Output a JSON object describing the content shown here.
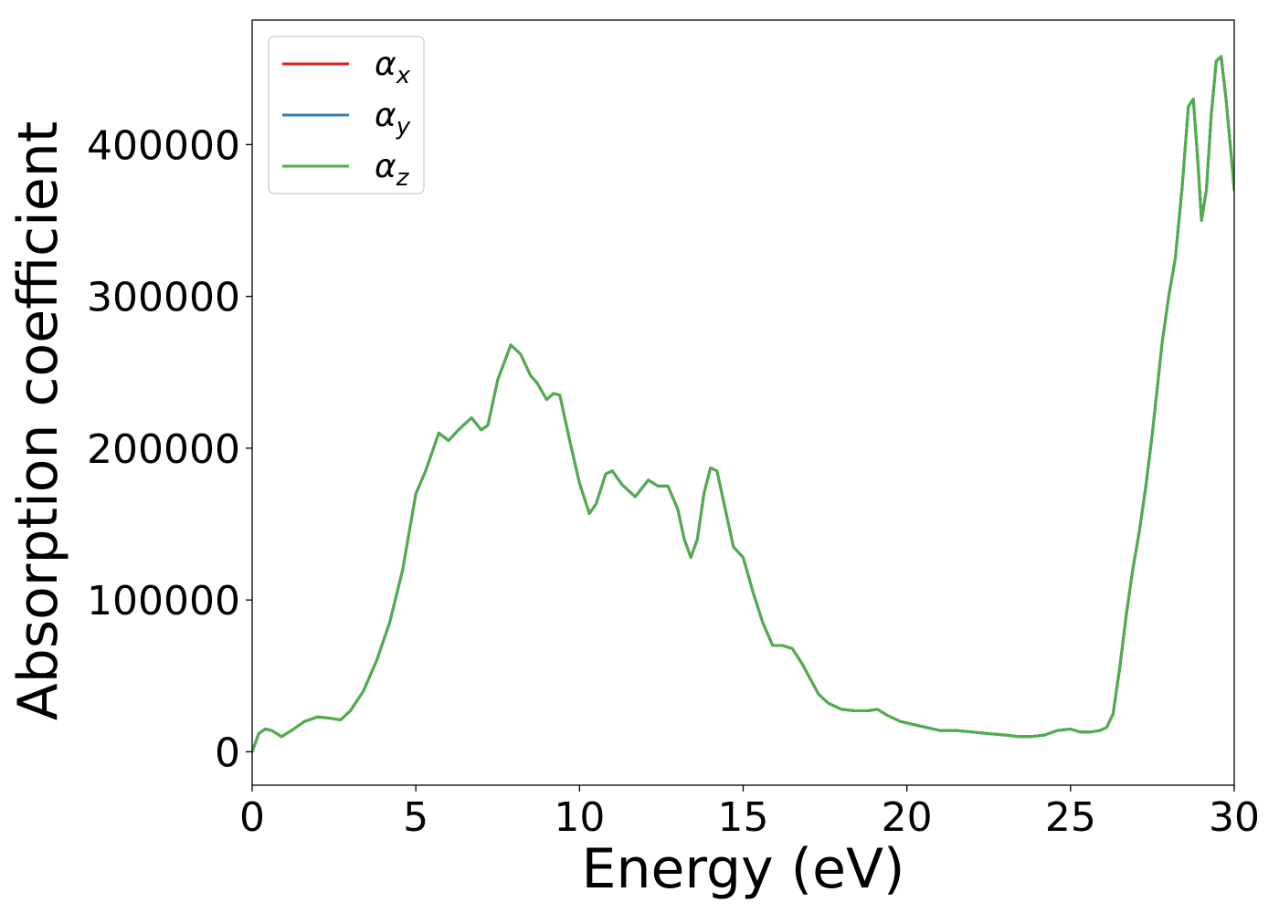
{
  "chart_data": {
    "type": "line",
    "xlabel": "Energy (eV)",
    "ylabel": "Absorption coefficient",
    "xlim": [
      0,
      30
    ],
    "ylim": [
      -22000,
      482000
    ],
    "xticks": [
      0,
      5,
      10,
      15,
      20,
      25,
      30
    ],
    "yticks": [
      0,
      100000,
      200000,
      300000,
      400000
    ],
    "grid": false,
    "legend_position": "top-left",
    "series": [
      {
        "name": "x",
        "color": "#e41a1c",
        "x": [
          0,
          0.2,
          0.4,
          0.6,
          0.9,
          1.2,
          1.6,
          2.0,
          2.4,
          2.7,
          3.0,
          3.4,
          3.8,
          4.2,
          4.6,
          5.0,
          5.3,
          5.7,
          6.0,
          6.3,
          6.7,
          7.0,
          7.2,
          7.5,
          7.9,
          8.2,
          8.5,
          8.7,
          9.0,
          9.2,
          9.4,
          9.7,
          10.0,
          10.3,
          10.5,
          10.8,
          11.0,
          11.3,
          11.7,
          12.1,
          12.4,
          12.7,
          13.0,
          13.2,
          13.4,
          13.6,
          13.8,
          14.0,
          14.2,
          14.4,
          14.7,
          15.0,
          15.3,
          15.6,
          15.9,
          16.2,
          16.5,
          16.8,
          17.0,
          17.3,
          17.6,
          18.0,
          18.4,
          18.8,
          19.1,
          19.4,
          19.8,
          20.2,
          20.6,
          21.0,
          21.5,
          22.0,
          22.5,
          23.0,
          23.4,
          23.8,
          24.2,
          24.6,
          25.0,
          25.3,
          25.6,
          25.9,
          26.1,
          26.3,
          26.5,
          26.7,
          26.9,
          27.1,
          27.3,
          27.5,
          27.8,
          28.0,
          28.2,
          28.4,
          28.6,
          28.75,
          28.9,
          29.0,
          29.15,
          29.3,
          29.45,
          29.6,
          29.75,
          29.9,
          30.0
        ],
        "y": [
          0,
          12000,
          15000,
          14000,
          10000,
          14000,
          20000,
          23000,
          22000,
          21000,
          27000,
          40000,
          60000,
          85000,
          120000,
          170000,
          185000,
          210000,
          205000,
          212000,
          220000,
          212000,
          215000,
          245000,
          268000,
          262000,
          248000,
          243000,
          232000,
          236000,
          235000,
          205000,
          177000,
          157000,
          163000,
          183000,
          185000,
          176000,
          168000,
          179000,
          175000,
          175000,
          160000,
          140000,
          128000,
          140000,
          170000,
          187000,
          185000,
          165000,
          135000,
          128000,
          105000,
          85000,
          70000,
          70000,
          68000,
          58000,
          50000,
          38000,
          32000,
          28000,
          27000,
          27000,
          28000,
          24000,
          20000,
          18000,
          16000,
          14000,
          14000,
          13000,
          12000,
          11000,
          10000,
          10000,
          11000,
          14000,
          15000,
          13000,
          13000,
          14000,
          16000,
          25000,
          55000,
          90000,
          120000,
          145000,
          175000,
          210000,
          270000,
          300000,
          325000,
          370000,
          425000,
          430000,
          385000,
          350000,
          370000,
          420000,
          455000,
          458000,
          430000,
          395000,
          370000
        ]
      },
      {
        "name": "y",
        "color": "#377eb8",
        "x": [
          0,
          0.2,
          0.4,
          0.6,
          0.9,
          1.2,
          1.6,
          2.0,
          2.4,
          2.7,
          3.0,
          3.4,
          3.8,
          4.2,
          4.6,
          5.0,
          5.3,
          5.7,
          6.0,
          6.3,
          6.7,
          7.0,
          7.2,
          7.5,
          7.9,
          8.2,
          8.5,
          8.7,
          9.0,
          9.2,
          9.4,
          9.7,
          10.0,
          10.3,
          10.5,
          10.8,
          11.0,
          11.3,
          11.7,
          12.1,
          12.4,
          12.7,
          13.0,
          13.2,
          13.4,
          13.6,
          13.8,
          14.0,
          14.2,
          14.4,
          14.7,
          15.0,
          15.3,
          15.6,
          15.9,
          16.2,
          16.5,
          16.8,
          17.0,
          17.3,
          17.6,
          18.0,
          18.4,
          18.8,
          19.1,
          19.4,
          19.8,
          20.2,
          20.6,
          21.0,
          21.5,
          22.0,
          22.5,
          23.0,
          23.4,
          23.8,
          24.2,
          24.6,
          25.0,
          25.3,
          25.6,
          25.9,
          26.1,
          26.3,
          26.5,
          26.7,
          26.9,
          27.1,
          27.3,
          27.5,
          27.8,
          28.0,
          28.2,
          28.4,
          28.6,
          28.75,
          28.9,
          29.0,
          29.15,
          29.3,
          29.45,
          29.6,
          29.75,
          29.9,
          30.0
        ],
        "y": [
          0,
          12000,
          15000,
          14000,
          10000,
          14000,
          20000,
          23000,
          22000,
          21000,
          27000,
          40000,
          60000,
          85000,
          120000,
          170000,
          185000,
          210000,
          205000,
          212000,
          220000,
          212000,
          215000,
          245000,
          268000,
          262000,
          248000,
          243000,
          232000,
          236000,
          235000,
          205000,
          177000,
          157000,
          163000,
          183000,
          185000,
          176000,
          168000,
          179000,
          175000,
          175000,
          160000,
          140000,
          128000,
          140000,
          170000,
          187000,
          185000,
          165000,
          135000,
          128000,
          105000,
          85000,
          70000,
          70000,
          68000,
          58000,
          50000,
          38000,
          32000,
          28000,
          27000,
          27000,
          28000,
          24000,
          20000,
          18000,
          16000,
          14000,
          14000,
          13000,
          12000,
          11000,
          10000,
          10000,
          11000,
          14000,
          15000,
          13000,
          13000,
          14000,
          16000,
          25000,
          55000,
          90000,
          120000,
          145000,
          175000,
          210000,
          270000,
          300000,
          325000,
          370000,
          425000,
          430000,
          385000,
          350000,
          370000,
          420000,
          455000,
          458000,
          430000,
          395000,
          370000
        ]
      },
      {
        "name": "z",
        "color": "#4daf4a",
        "x": [
          0,
          0.2,
          0.4,
          0.6,
          0.9,
          1.2,
          1.6,
          2.0,
          2.4,
          2.7,
          3.0,
          3.4,
          3.8,
          4.2,
          4.6,
          5.0,
          5.3,
          5.7,
          6.0,
          6.3,
          6.7,
          7.0,
          7.2,
          7.5,
          7.9,
          8.2,
          8.5,
          8.7,
          9.0,
          9.2,
          9.4,
          9.7,
          10.0,
          10.3,
          10.5,
          10.8,
          11.0,
          11.3,
          11.7,
          12.1,
          12.4,
          12.7,
          13.0,
          13.2,
          13.4,
          13.6,
          13.8,
          14.0,
          14.2,
          14.4,
          14.7,
          15.0,
          15.3,
          15.6,
          15.9,
          16.2,
          16.5,
          16.8,
          17.0,
          17.3,
          17.6,
          18.0,
          18.4,
          18.8,
          19.1,
          19.4,
          19.8,
          20.2,
          20.6,
          21.0,
          21.5,
          22.0,
          22.5,
          23.0,
          23.4,
          23.8,
          24.2,
          24.6,
          25.0,
          25.3,
          25.6,
          25.9,
          26.1,
          26.3,
          26.5,
          26.7,
          26.9,
          27.1,
          27.3,
          27.5,
          27.8,
          28.0,
          28.2,
          28.4,
          28.6,
          28.75,
          28.9,
          29.0,
          29.15,
          29.3,
          29.45,
          29.6,
          29.75,
          29.9,
          30.0
        ],
        "y": [
          0,
          12000,
          15000,
          14000,
          10000,
          14000,
          20000,
          23000,
          22000,
          21000,
          27000,
          40000,
          60000,
          85000,
          120000,
          170000,
          185000,
          210000,
          205000,
          212000,
          220000,
          212000,
          215000,
          245000,
          268000,
          262000,
          248000,
          243000,
          232000,
          236000,
          235000,
          205000,
          177000,
          157000,
          163000,
          183000,
          185000,
          176000,
          168000,
          179000,
          175000,
          175000,
          160000,
          140000,
          128000,
          140000,
          170000,
          187000,
          185000,
          165000,
          135000,
          128000,
          105000,
          85000,
          70000,
          70000,
          68000,
          58000,
          50000,
          38000,
          32000,
          28000,
          27000,
          27000,
          28000,
          24000,
          20000,
          18000,
          16000,
          14000,
          14000,
          13000,
          12000,
          11000,
          10000,
          10000,
          11000,
          14000,
          15000,
          13000,
          13000,
          14000,
          16000,
          25000,
          55000,
          90000,
          120000,
          145000,
          175000,
          210000,
          270000,
          300000,
          325000,
          370000,
          425000,
          430000,
          385000,
          350000,
          370000,
          420000,
          455000,
          458000,
          430000,
          395000,
          370000
        ]
      }
    ]
  }
}
